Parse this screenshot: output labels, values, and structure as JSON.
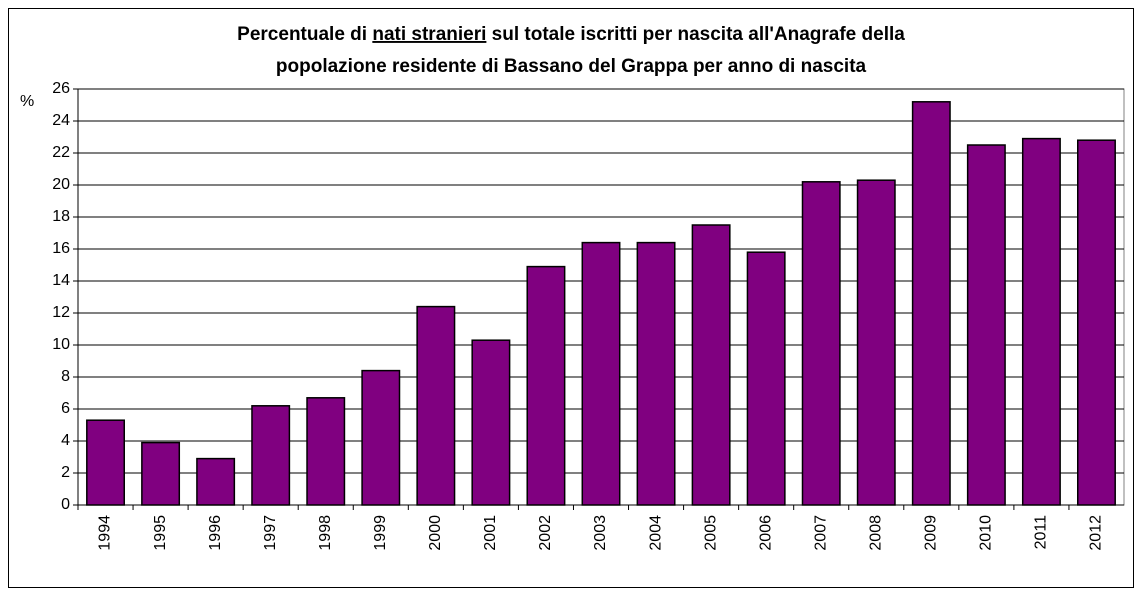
{
  "chart_data": {
    "type": "bar",
    "title": [
      "Percentuale di ",
      "nati stranieri",
      " sul totale iscritti per nascita all'Anagrafe della",
      "popolazione residente di Bassano del Grappa per anno di nascita"
    ],
    "y_label": "%",
    "categories": [
      "1994",
      "1995",
      "1996",
      "1997",
      "1998",
      "1999",
      "2000",
      "2001",
      "2002",
      "2003",
      "2004",
      "2005",
      "2006",
      "2007",
      "2008",
      "2009",
      "2010",
      "2011",
      "2012"
    ],
    "values": [
      5.3,
      3.9,
      2.9,
      6.2,
      6.7,
      8.4,
      12.4,
      10.3,
      14.9,
      16.4,
      16.4,
      17.5,
      15.8,
      20.2,
      20.3,
      25.2,
      22.5,
      22.9,
      22.8
    ],
    "color": "#800080",
    "ylim": [
      0,
      26
    ],
    "yticks": [
      0,
      2,
      4,
      6,
      8,
      10,
      12,
      14,
      16,
      18,
      20,
      22,
      24,
      26
    ],
    "grid": true
  }
}
